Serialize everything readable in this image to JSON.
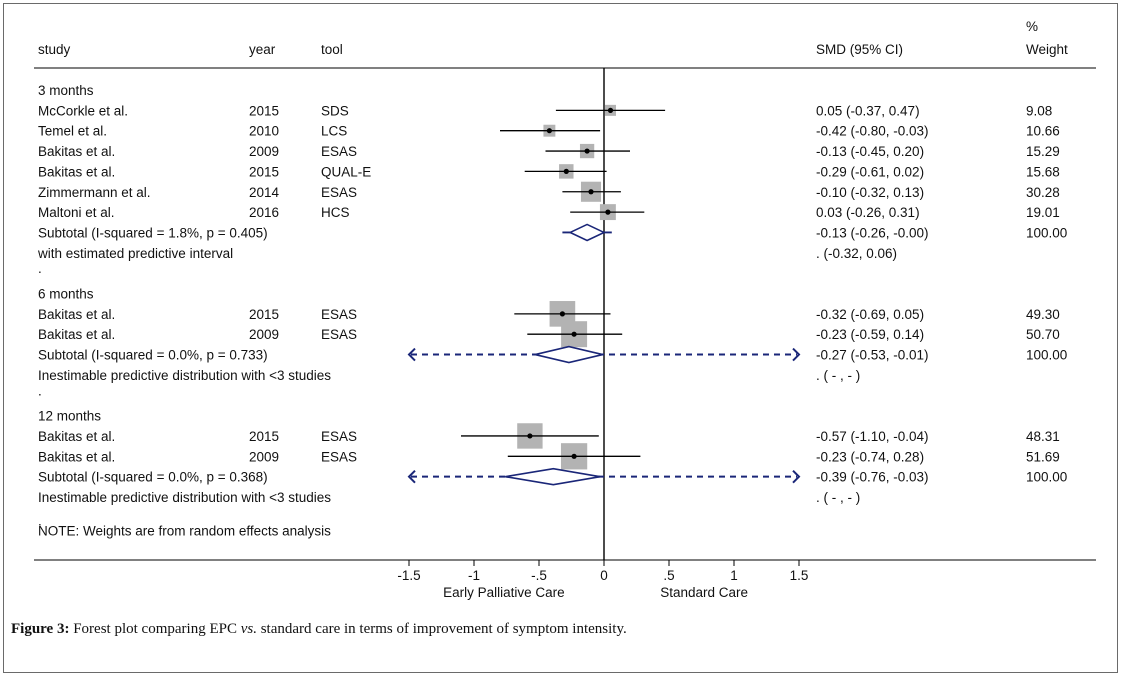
{
  "chart_data": {
    "type": "forest",
    "headers": {
      "study": "study",
      "year": "year",
      "tool": "tool",
      "effect": "SMD (95% CI)",
      "weight_top": "%",
      "weight": "Weight"
    },
    "groups": [
      {
        "label": "3 months",
        "studies": [
          {
            "study": "McCorkle et al.",
            "year": "2015",
            "tool": "SDS",
            "est": 0.05,
            "lo": -0.37,
            "hi": 0.47,
            "ci_text": "0.05 (-0.37, 0.47)",
            "weight": 9.08,
            "weight_text": "9.08"
          },
          {
            "study": "Temel et al.",
            "year": "2010",
            "tool": "LCS",
            "est": -0.42,
            "lo": -0.8,
            "hi": -0.03,
            "ci_text": "-0.42 (-0.80, -0.03)",
            "weight": 10.66,
            "weight_text": "10.66"
          },
          {
            "study": "Bakitas et al.",
            "year": "2009",
            "tool": "ESAS",
            "est": -0.13,
            "lo": -0.45,
            "hi": 0.2,
            "ci_text": "-0.13 (-0.45, 0.20)",
            "weight": 15.29,
            "weight_text": "15.29"
          },
          {
            "study": "Bakitas et al.",
            "year": "2015",
            "tool": "QUAL-E",
            "est": -0.29,
            "lo": -0.61,
            "hi": 0.02,
            "ci_text": "-0.29 (-0.61, 0.02)",
            "weight": 15.68,
            "weight_text": "15.68"
          },
          {
            "study": "Zimmermann et al.",
            "year": "2014",
            "tool": "ESAS",
            "est": -0.1,
            "lo": -0.32,
            "hi": 0.13,
            "ci_text": "-0.10 (-0.32, 0.13)",
            "weight": 30.28,
            "weight_text": "30.28"
          },
          {
            "study": "Maltoni et al.",
            "year": "2016",
            "tool": "HCS",
            "est": 0.03,
            "lo": -0.26,
            "hi": 0.31,
            "ci_text": "0.03 (-0.26, 0.31)",
            "weight": 19.01,
            "weight_text": "19.01"
          }
        ],
        "subtotal": {
          "label": "Subtotal  (I-squared = 1.8%, p = 0.405)",
          "est": -0.13,
          "lo": -0.26,
          "hi": 0.0,
          "ci_text": "-0.13 (-0.26, -0.00)",
          "weight_text": "100.00"
        },
        "prediction": {
          "label": "with estimated predictive interval",
          "lo": -0.32,
          "hi": 0.06,
          "text": ".        (-0.32, 0.06)"
        },
        "trailing_dot": "."
      },
      {
        "label": "6 months",
        "studies": [
          {
            "study": "Bakitas et al.",
            "year": "2015",
            "tool": "ESAS",
            "est": -0.32,
            "lo": -0.69,
            "hi": 0.05,
            "ci_text": "-0.32 (-0.69, 0.05)",
            "weight": 49.3,
            "weight_text": "49.30"
          },
          {
            "study": "Bakitas et al.",
            "year": "2009",
            "tool": "ESAS",
            "est": -0.23,
            "lo": -0.59,
            "hi": 0.14,
            "ci_text": "-0.23 (-0.59, 0.14)",
            "weight": 50.7,
            "weight_text": "50.70"
          }
        ],
        "subtotal": {
          "label": "Subtotal  (I-squared = 0.0%, p = 0.733)",
          "est": -0.27,
          "lo": -0.53,
          "hi": -0.01,
          "ci_text": "-0.27 (-0.53, -0.01)",
          "weight_text": "100.00"
        },
        "prediction": {
          "label": "Inestimable predictive distribution with <3 studies",
          "text": ".       (  -  ,  -  )"
        },
        "trailing_dot": "."
      },
      {
        "label": "12 months",
        "studies": [
          {
            "study": "Bakitas et al.",
            "year": "2015",
            "tool": "ESAS",
            "est": -0.57,
            "lo": -1.1,
            "hi": -0.04,
            "ci_text": "-0.57 (-1.10, -0.04)",
            "weight": 48.31,
            "weight_text": "48.31"
          },
          {
            "study": "Bakitas et al.",
            "year": "2009",
            "tool": "ESAS",
            "est": -0.23,
            "lo": -0.74,
            "hi": 0.28,
            "ci_text": "-0.23 (-0.74, 0.28)",
            "weight": 51.69,
            "weight_text": "51.69"
          }
        ],
        "subtotal": {
          "label": "Subtotal  (I-squared = 0.0%, p = 0.368)",
          "est": -0.39,
          "lo": -0.76,
          "hi": -0.03,
          "ci_text": "-0.39 (-0.76, -0.03)",
          "weight_text": "100.00"
        },
        "prediction": {
          "label": "Inestimable predictive distribution with <3 studies",
          "text": ".       (  -  ,  -  )"
        }
      }
    ],
    "note_dot": ".",
    "note": "NOTE: Weights are from random effects analysis",
    "xlim": [
      -1.5,
      1.5
    ],
    "xticks": [
      -1.5,
      -1,
      -0.5,
      0,
      0.5,
      1,
      1.5
    ],
    "xtick_labels": [
      "-1.5",
      "-1",
      "-.5",
      "0",
      ".5",
      "1",
      "1.5"
    ],
    "xlabel_left": "Early Palliative Care",
    "xlabel_right": "Standard Care",
    "colors": {
      "estimate": "#000000",
      "box": "#b3b3b3",
      "diamond": "#1a2678",
      "line": "#000000"
    }
  },
  "caption": {
    "label": "Figure 3:",
    "text_before": " Forest plot comparing EPC ",
    "text_italic": "vs.",
    "text_after": " standard care in terms of improvement of symptom intensity."
  }
}
